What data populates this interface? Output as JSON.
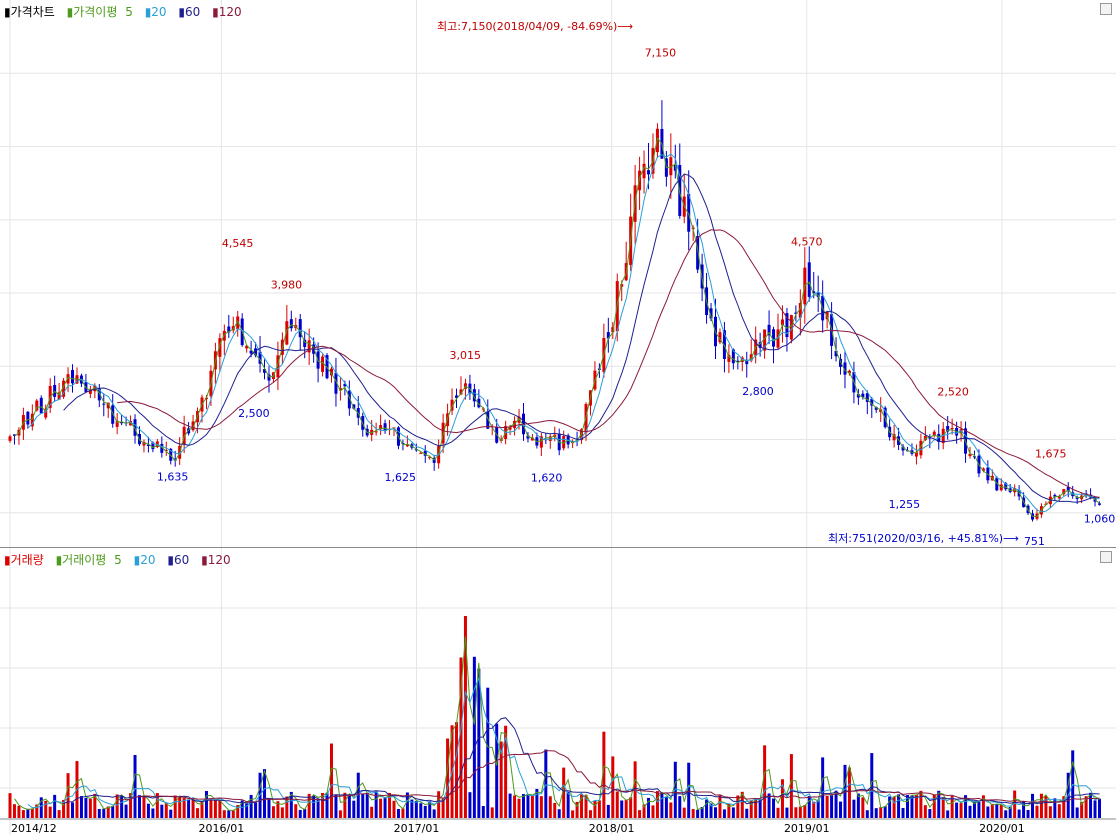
{
  "price_panel": {
    "legend": {
      "title": "가격차트",
      "ma_label": "가격이평",
      "periods": [
        "5",
        "20",
        "60",
        "120"
      ]
    },
    "peak_annotation": "최고:7,150(2018/04/09, -84.69%)⟶",
    "low_annotation": "최저:751(2020/03/16, +45.81%)⟶"
  },
  "volume_panel": {
    "legend": {
      "title": "거래량",
      "ma_label": "거래이평",
      "periods": [
        "5",
        "20",
        "60",
        "120"
      ]
    }
  },
  "colors": {
    "up": "#dd0000",
    "down": "#0000cc",
    "ma5": "#4d9a1c",
    "ma20": "#2a9fd8",
    "ma60": "#1f1f8f",
    "ma120": "#8b1a3a",
    "grid": "#e6e6e6"
  },
  "chart_data": [
    {
      "type": "candlestick",
      "title": "가격차트",
      "x_tick_labels": [
        "2014/12",
        "2016/01",
        "2017/01",
        "2018/01",
        "2019/01",
        "2020/01"
      ],
      "ylim": [
        560,
        7700
      ],
      "series": [
        {
          "name": "가격",
          "points": [
            {
              "d": "2014/12",
              "v": 2000
            },
            {
              "d": "2015/02",
              "v": 2500
            },
            {
              "d": "2015/04",
              "v": 2900
            },
            {
              "d": "2015/06",
              "v": 2400
            },
            {
              "d": "2015/08",
              "v": 2050
            },
            {
              "d": "2015/10",
              "v": 1750
            },
            {
              "d": "2015/12",
              "v": 2600
            },
            {
              "d": "2016/01",
              "v": 3400
            },
            {
              "d": "2016/02",
              "v": 3500
            },
            {
              "d": "2016/03",
              "v": 3250
            },
            {
              "d": "2016/04",
              "v": 2850
            },
            {
              "d": "2016/05",
              "v": 3600
            },
            {
              "d": "2016/06",
              "v": 3300
            },
            {
              "d": "2016/08",
              "v": 2800
            },
            {
              "d": "2016/10",
              "v": 2050
            },
            {
              "d": "2016/11",
              "v": 2200
            },
            {
              "d": "2016/12",
              "v": 1950
            },
            {
              "d": "2017/01",
              "v": 1900
            },
            {
              "d": "2017/02",
              "v": 1700
            },
            {
              "d": "2017/03",
              "v": 2400
            },
            {
              "d": "2017/04",
              "v": 2800
            },
            {
              "d": "2017/05",
              "v": 2400
            },
            {
              "d": "2017/06",
              "v": 2000
            },
            {
              "d": "2017/07",
              "v": 2350
            },
            {
              "d": "2017/08",
              "v": 2050
            },
            {
              "d": "2017/09",
              "v": 2000
            },
            {
              "d": "2017/10",
              "v": 1950
            },
            {
              "d": "2017/11",
              "v": 2100
            },
            {
              "d": "2017/12",
              "v": 3000
            },
            {
              "d": "2018/01",
              "v": 3500
            },
            {
              "d": "2018/02",
              "v": 4800
            },
            {
              "d": "2018/03",
              "v": 5800
            },
            {
              "d": "2018/04",
              "v": 6000
            },
            {
              "d": "2018/05",
              "v": 5400
            },
            {
              "d": "2018/06",
              "v": 4800
            },
            {
              "d": "2018/07",
              "v": 3500
            },
            {
              "d": "2018/08",
              "v": 3200
            },
            {
              "d": "2018/09",
              "v": 3000
            },
            {
              "d": "2018/10",
              "v": 3300
            },
            {
              "d": "2018/11",
              "v": 3400
            },
            {
              "d": "2018/12",
              "v": 3600
            },
            {
              "d": "2019/01",
              "v": 4200
            },
            {
              "d": "2019/02",
              "v": 3800
            },
            {
              "d": "2019/03",
              "v": 2900
            },
            {
              "d": "2019/04",
              "v": 2700
            },
            {
              "d": "2019/05",
              "v": 2500
            },
            {
              "d": "2019/06",
              "v": 2200
            },
            {
              "d": "2019/07",
              "v": 1750
            },
            {
              "d": "2019/08",
              "v": 1950
            },
            {
              "d": "2019/09",
              "v": 2000
            },
            {
              "d": "2019/10",
              "v": 2250
            },
            {
              "d": "2019/11",
              "v": 1800
            },
            {
              "d": "2019/12",
              "v": 1500
            },
            {
              "d": "2020/01",
              "v": 1300
            },
            {
              "d": "2020/02",
              "v": 1250
            },
            {
              "d": "2020/03",
              "v": 900
            },
            {
              "d": "2020/04",
              "v": 1200
            },
            {
              "d": "2020/05",
              "v": 1300
            },
            {
              "d": "2020/06",
              "v": 1200
            },
            {
              "d": "2020/07",
              "v": 1150
            }
          ]
        }
      ],
      "annotations": [
        {
          "text": "4,545",
          "d": "2016/02",
          "value": 4545,
          "kind": "high"
        },
        {
          "text": "3,980",
          "d": "2016/05",
          "value": 3980,
          "kind": "high"
        },
        {
          "text": "3,015",
          "d": "2017/04",
          "value": 3015,
          "kind": "high"
        },
        {
          "text": "7,150",
          "d": "2018/04",
          "value": 7150,
          "kind": "high"
        },
        {
          "text": "4,570",
          "d": "2019/01",
          "value": 4570,
          "kind": "high"
        },
        {
          "text": "2,520",
          "d": "2019/10",
          "value": 2520,
          "kind": "high"
        },
        {
          "text": "1,675",
          "d": "2020/04",
          "value": 1675,
          "kind": "high"
        },
        {
          "text": "1,635",
          "d": "2015/10",
          "value": 1635,
          "kind": "low"
        },
        {
          "text": "2,500",
          "d": "2016/03",
          "value": 2500,
          "kind": "low"
        },
        {
          "text": "1,625",
          "d": "2016/12",
          "value": 1625,
          "kind": "low"
        },
        {
          "text": "1,620",
          "d": "2017/09",
          "value": 1620,
          "kind": "low"
        },
        {
          "text": "2,800",
          "d": "2018/10",
          "value": 2800,
          "kind": "low"
        },
        {
          "text": "1,255",
          "d": "2019/07",
          "value": 1255,
          "kind": "low"
        },
        {
          "text": "751",
          "d": "2020/03",
          "value": 751,
          "kind": "low"
        },
        {
          "text": "1,060",
          "d": "2020/07",
          "value": 1060,
          "kind": "low"
        }
      ]
    },
    {
      "type": "bar",
      "title": "거래량",
      "x_tick_labels": [
        "2014/12",
        "2016/01",
        "2017/01",
        "2018/01",
        "2019/01",
        "2020/01"
      ],
      "spikes": [
        {
          "d": "2017/03",
          "value": 0.48
        },
        {
          "d": "2017/04",
          "value": 0.93
        },
        {
          "d": "2017/05",
          "value": 0.68
        },
        {
          "d": "2017/06",
          "value": 0.42
        },
        {
          "d": "2018/01",
          "value": 0.35
        },
        {
          "d": "2020/05",
          "value": 0.4
        }
      ]
    }
  ]
}
